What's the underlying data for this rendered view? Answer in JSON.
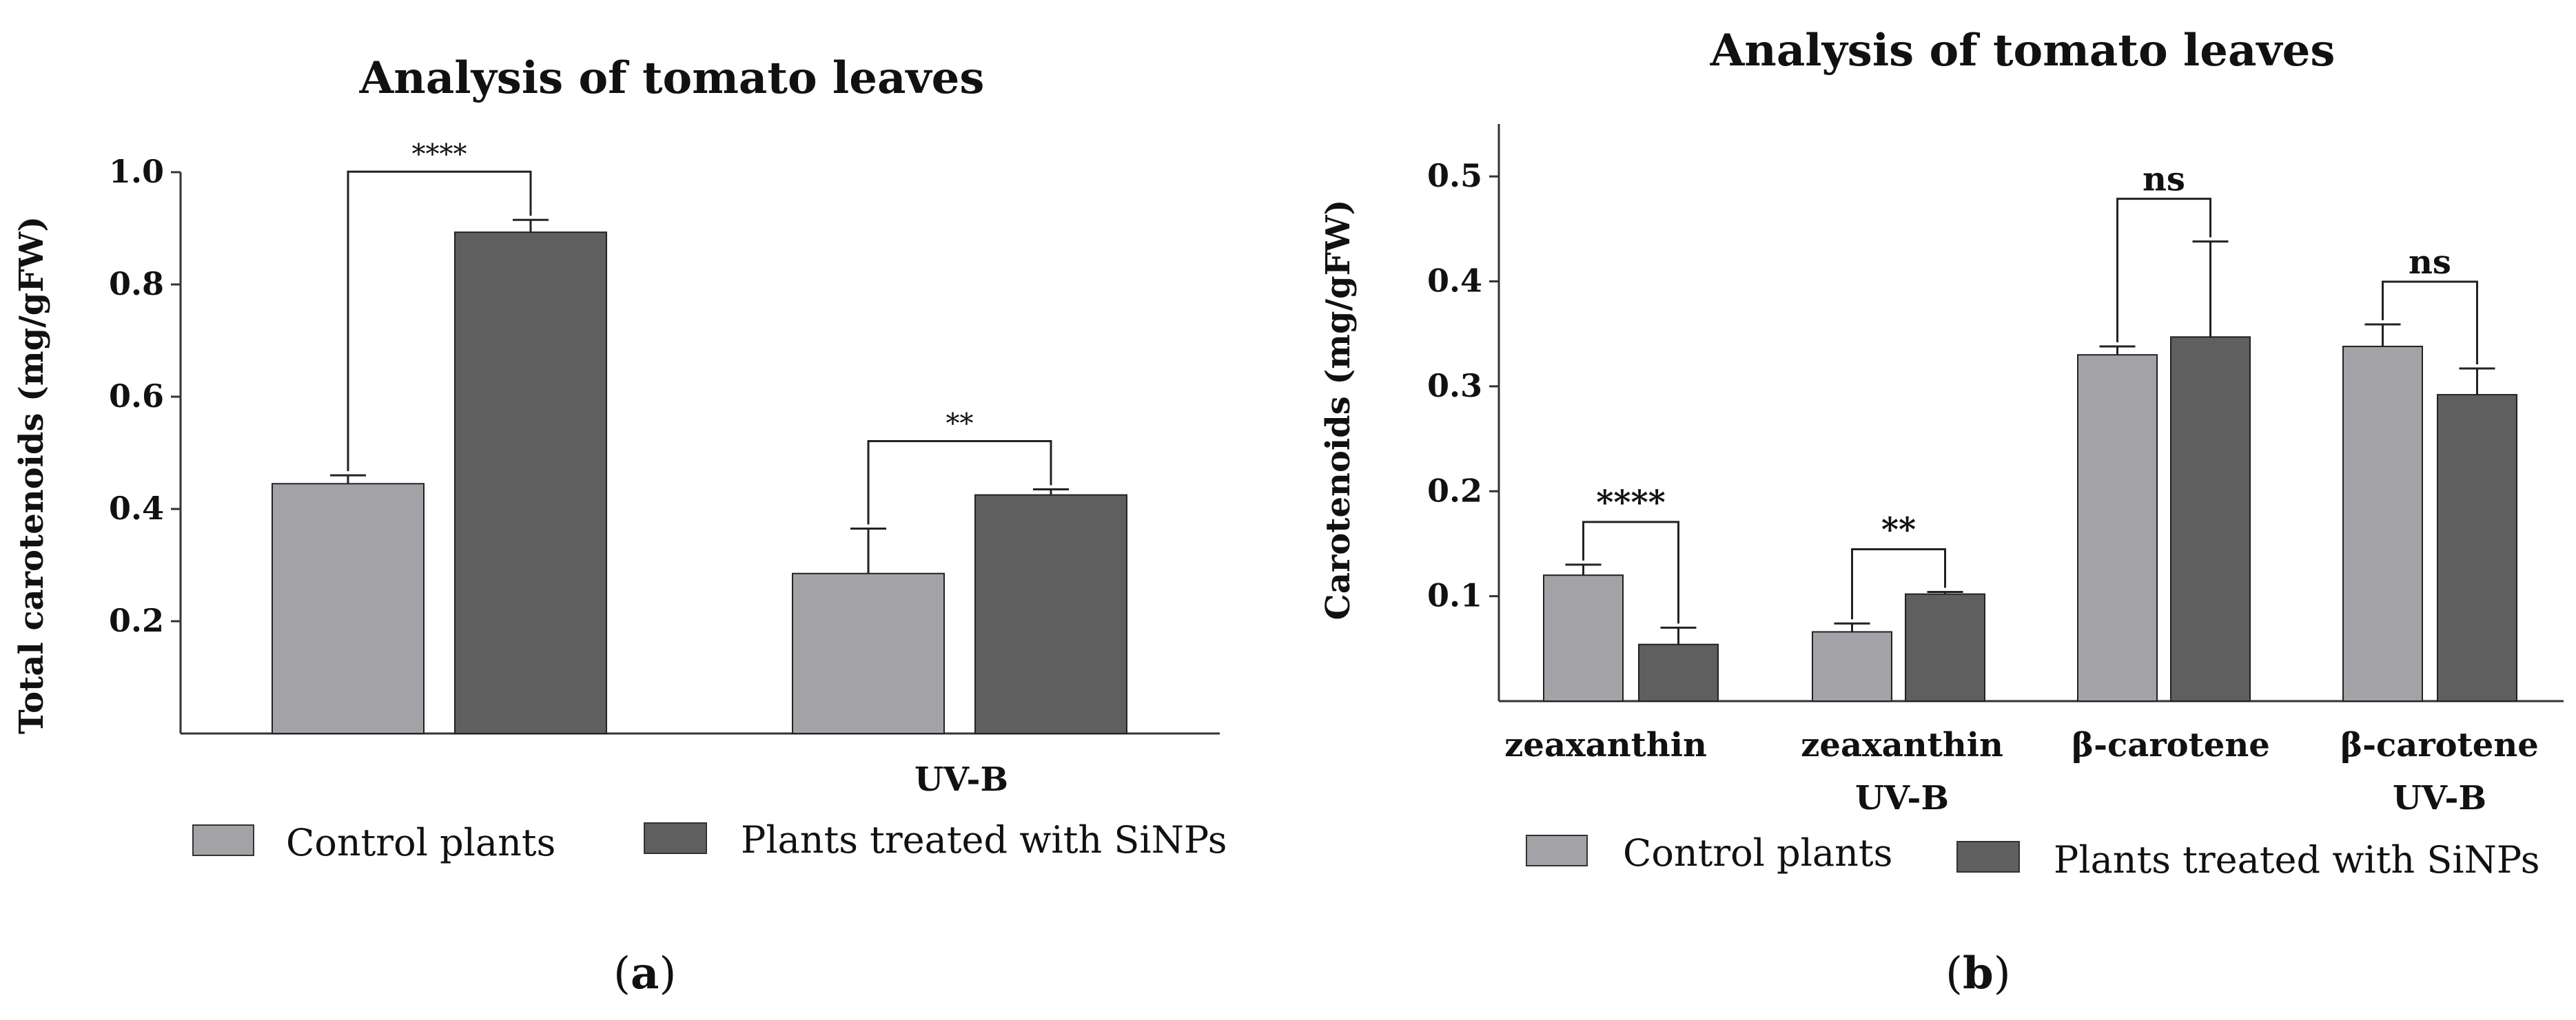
{
  "colors": {
    "control": "#a3a3a7",
    "treated": "#5f5f5f",
    "axis": "#333333"
  },
  "legend": {
    "control": "Control plants",
    "treated": "Plants treated with SiNPs"
  },
  "chart_data": [
    {
      "type": "bar",
      "panel_label": "a",
      "title": "Analysis of tomato leaves",
      "ylabel": "Total carotenoids (mg/gFW)",
      "ylim": [
        0.0,
        1.0
      ],
      "yticks": [
        "0.2",
        "0.4",
        "0.6",
        "0.8",
        "1.0"
      ],
      "categories": [
        "",
        "UV-B"
      ],
      "series": [
        {
          "name": "Control plants",
          "values": [
            0.445,
            0.285
          ],
          "errors": [
            0.015,
            0.08
          ]
        },
        {
          "name": "Plants treated with SiNPs",
          "values": [
            0.893,
            0.425
          ],
          "errors": [
            0.022,
            0.01
          ]
        }
      ],
      "significance": [
        "****",
        "**"
      ]
    },
    {
      "type": "bar",
      "panel_label": "b",
      "title": "Analysis of tomato leaves",
      "ylabel": "Carotenoids (mg/gFW)",
      "ylim": [
        0.0,
        0.55
      ],
      "yticks": [
        "0.1",
        "0.2",
        "0.3",
        "0.4",
        "0.5"
      ],
      "categories": [
        {
          "line1": "zeaxanthin",
          "line2": ""
        },
        {
          "line1": "zeaxanthin",
          "line2": "UV-B"
        },
        {
          "line1": "β-carotene",
          "line2": ""
        },
        {
          "line1": "β-carotene",
          "line2": "UV-B"
        }
      ],
      "series": [
        {
          "name": "Control plants",
          "values": [
            0.12,
            0.066,
            0.33,
            0.338
          ],
          "errors": [
            0.01,
            0.008,
            0.008,
            0.021
          ]
        },
        {
          "name": "Plants treated with SiNPs",
          "values": [
            0.054,
            0.102,
            0.347,
            0.292
          ],
          "errors": [
            0.016,
            0.002,
            0.091,
            0.025
          ]
        }
      ],
      "significance": [
        "****",
        "**",
        "ns",
        "ns"
      ]
    }
  ]
}
